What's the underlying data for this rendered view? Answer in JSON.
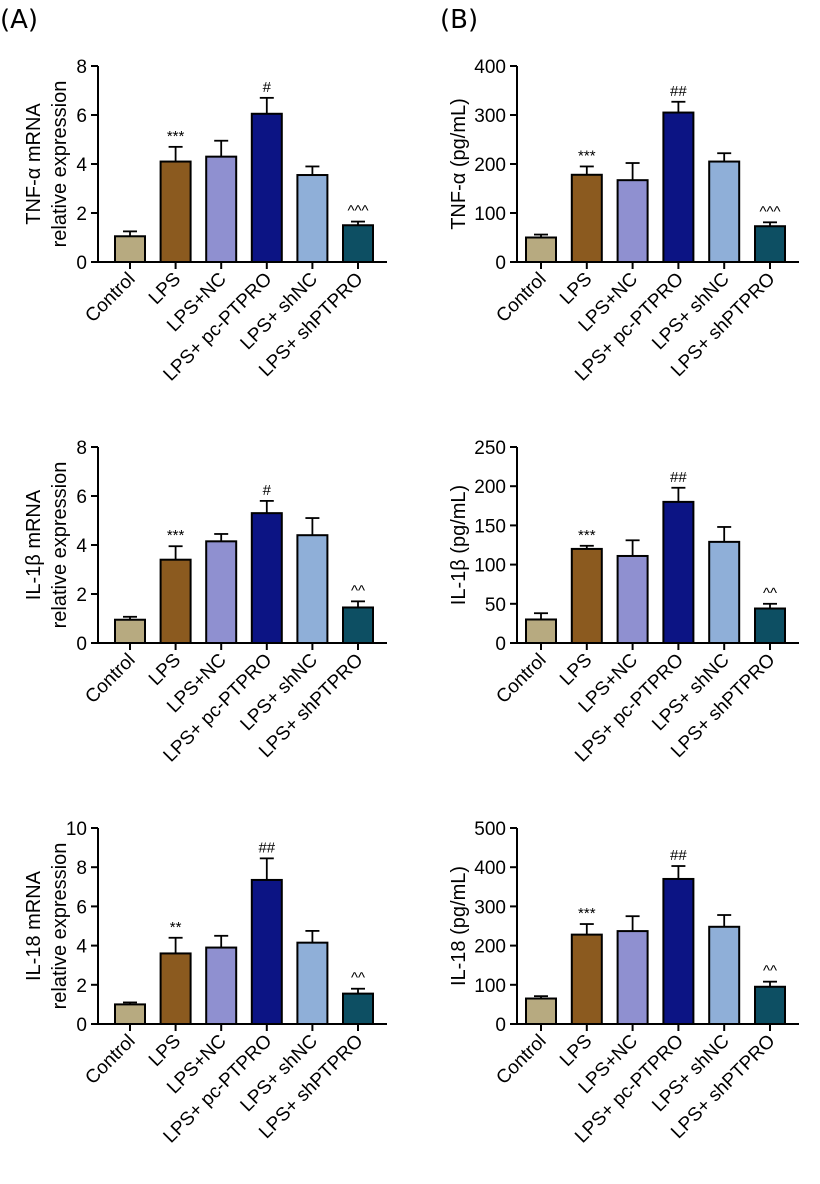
{
  "panel_labels": [
    "(A)",
    "(B)"
  ],
  "colors": {
    "Control": "#b7aa80",
    "LPS": "#8b5a1f",
    "LPS+NC": "#8f90d0",
    "LPS+ pc-PTPRO": "#0c1484",
    "LPS+ shNC": "#8fafd8",
    "LPS+ shPTPRO": "#0d4f63"
  },
  "chart_data": [
    {
      "type": "bar",
      "panel": "(A)",
      "ylabel": [
        "TNF-α mRNA",
        "relative expression"
      ],
      "categories": [
        "Control",
        "LPS",
        "LPS+NC",
        "LPS+ pc-PTPRO",
        "LPS+ shNC",
        "LPS+ shPTPRO"
      ],
      "values": [
        1.05,
        4.1,
        4.3,
        6.05,
        3.55,
        1.5
      ],
      "errors": [
        0.2,
        0.6,
        0.65,
        0.65,
        0.35,
        0.15
      ],
      "annotations": [
        "",
        "***",
        "",
        "#",
        "",
        "^^^"
      ],
      "ylim": [
        0,
        8
      ],
      "yticks": [
        0,
        2,
        4,
        6,
        8
      ]
    },
    {
      "type": "bar",
      "panel": "(B)",
      "ylabel": [
        "TNF-α (pg/mL)"
      ],
      "categories": [
        "Control",
        "LPS",
        "LPS+NC",
        "LPS+ pc-PTPRO",
        "LPS+ shNC",
        "LPS+ shPTPRO"
      ],
      "values": [
        50,
        178,
        167,
        305,
        205,
        73
      ],
      "errors": [
        6,
        17,
        35,
        22,
        17,
        8
      ],
      "annotations": [
        "",
        "***",
        "",
        "##",
        "",
        "^^^"
      ],
      "ylim": [
        0,
        400
      ],
      "yticks": [
        0,
        100,
        200,
        300,
        400
      ]
    },
    {
      "type": "bar",
      "panel": "",
      "ylabel": [
        "IL-1β mRNA",
        "relative expression"
      ],
      "categories": [
        "Control",
        "LPS",
        "LPS+NC",
        "LPS+ pc-PTPRO",
        "LPS+ shNC",
        "LPS+ shPTPRO"
      ],
      "values": [
        0.95,
        3.4,
        4.15,
        5.3,
        4.4,
        1.45
      ],
      "errors": [
        0.12,
        0.55,
        0.3,
        0.5,
        0.7,
        0.25
      ],
      "annotations": [
        "",
        "***",
        "",
        "#",
        "",
        "^^"
      ],
      "ylim": [
        0,
        8
      ],
      "yticks": [
        0,
        2,
        4,
        6,
        8
      ]
    },
    {
      "type": "bar",
      "panel": "",
      "ylabel": [
        "IL-1β (pg/mL)"
      ],
      "categories": [
        "Control",
        "LPS",
        "LPS+NC",
        "LPS+ pc-PTPRO",
        "LPS+ shNC",
        "LPS+ shPTPRO"
      ],
      "values": [
        30,
        120,
        111,
        180,
        129,
        44
      ],
      "errors": [
        8,
        4,
        20,
        18,
        19,
        6
      ],
      "annotations": [
        "",
        "***",
        "",
        "##",
        "",
        "^^"
      ],
      "ylim": [
        0,
        250
      ],
      "yticks": [
        0,
        50,
        100,
        150,
        200,
        250
      ]
    },
    {
      "type": "bar",
      "panel": "",
      "ylabel": [
        "IL-18 mRNA",
        "relative expression"
      ],
      "categories": [
        "Control",
        "LPS",
        "LPS+NC",
        "LPS+ pc-PTPRO",
        "LPS+ shNC",
        "LPS+ shPTPRO"
      ],
      "values": [
        1.0,
        3.6,
        3.9,
        7.35,
        4.15,
        1.55
      ],
      "errors": [
        0.1,
        0.8,
        0.6,
        1.1,
        0.6,
        0.25
      ],
      "annotations": [
        "",
        "**",
        "",
        "##",
        "",
        "^^"
      ],
      "ylim": [
        0,
        10
      ],
      "yticks": [
        0,
        2,
        4,
        6,
        8,
        10
      ]
    },
    {
      "type": "bar",
      "panel": "",
      "ylabel": [
        "IL-18 (pg/mL)"
      ],
      "categories": [
        "Control",
        "LPS",
        "LPS+NC",
        "LPS+ pc-PTPRO",
        "LPS+ shNC",
        "LPS+ shPTPRO"
      ],
      "values": [
        65,
        228,
        237,
        370,
        248,
        95
      ],
      "errors": [
        6,
        27,
        38,
        33,
        30,
        13
      ],
      "annotations": [
        "",
        "***",
        "",
        "##",
        "",
        "^^"
      ],
      "ylim": [
        0,
        500
      ],
      "yticks": [
        0,
        100,
        200,
        300,
        400,
        500
      ]
    }
  ]
}
